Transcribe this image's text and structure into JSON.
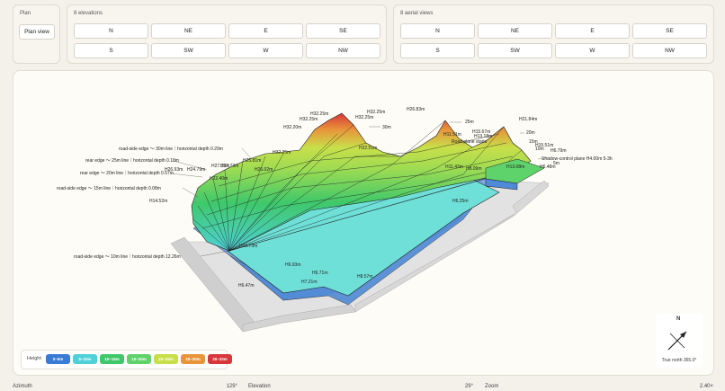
{
  "plan": {
    "title": "Plan",
    "button": "Plan view"
  },
  "elevations": {
    "title": "8 elevations",
    "row1": [
      "N",
      "NE",
      "E",
      "SE"
    ],
    "row2": [
      "S",
      "SW",
      "W",
      "NW"
    ]
  },
  "aerial": {
    "title": "8 aerial views",
    "row1": [
      "N",
      "NE",
      "E",
      "SE"
    ],
    "row2": [
      "S",
      "SW",
      "W",
      "NW"
    ]
  },
  "annotations": {
    "road10": "road-side edge 〜 10m line｜horizontal depth 12.26m",
    "road15": "road-side edge 〜 15m line｜horizontal depth 0.08m",
    "rear20": "rear edge 〜 20m line｜horizontal depth 0.57m",
    "rear25": "rear edge 〜 25m line｜horizontal depth 0.18m",
    "road30": "road-side edge 〜 30m line｜horizontal depth 0.29m",
    "shadow": "Shadow-control plane H4.00m 5-3h",
    "road_plane": "Road plane starts",
    "lbl_25m": "25m",
    "lbl_30m": "30m",
    "lbl_20m": "20m",
    "lbl_15m": "15m",
    "lbl_10m": "10m",
    "lbl_5m": "5m",
    "h_values": [
      "H32.25m",
      "H32.25m",
      "H32.25m",
      "H32.25m",
      "H32.20m",
      "H26.83m",
      "H21.84m",
      "H15.51m",
      "H15.67m",
      "H13.18m",
      "H11.51m",
      "H6.79m",
      "H14.52m",
      "H25.81m",
      "H27.35m",
      "H27.73m",
      "H26.93m",
      "H24.79m",
      "H26.02m",
      "H22.40m",
      "H32.25m",
      "H22.51m",
      "H11.43m",
      "H13.08m",
      "H10.73m",
      "H6.93m",
      "H6.71m",
      "H6.25m",
      "H8.09m",
      "H7.21m",
      "H6.47m",
      "H8.57m",
      "H6.48m"
    ]
  },
  "legend": {
    "title": "Height",
    "items": [
      {
        "label": "0–5m",
        "color": "#3a7bd5"
      },
      {
        "label": "5–10m",
        "color": "#4fd1d9"
      },
      {
        "label": "10–15m",
        "color": "#3fc86a"
      },
      {
        "label": "15–20m",
        "color": "#5fd36b"
      },
      {
        "label": "20–25m",
        "color": "#c9df4a"
      },
      {
        "label": "25–30m",
        "color": "#e8953a"
      },
      {
        "label": "30–33m",
        "color": "#d7373a"
      }
    ]
  },
  "compass": {
    "north": "N",
    "label": "True north 355.0°"
  },
  "status": {
    "azimuth_label": "Azimuth",
    "azimuth_value": "129°",
    "elevation_label": "Elevation",
    "elevation_value": "29°",
    "zoom_label": "Zoom",
    "zoom_value": "2.40×"
  }
}
